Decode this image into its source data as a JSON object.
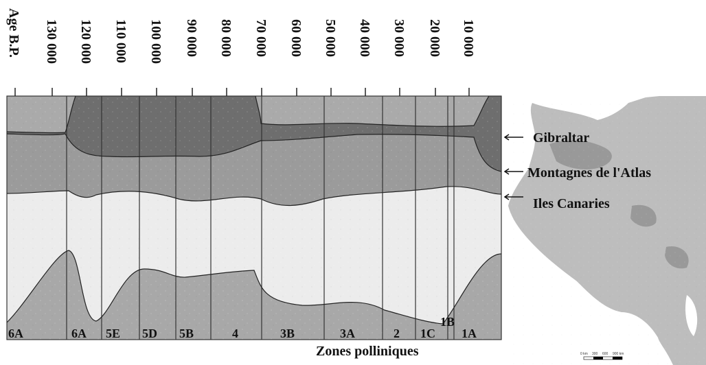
{
  "age_axis": {
    "title": "Age B.P.",
    "ticks": [
      "130 000",
      "120 000",
      "110 000",
      "100 000",
      "90 000",
      "80 000",
      "70 000",
      "60 000",
      "50 000",
      "40 000",
      "30 000",
      "20 000",
      "10 000"
    ]
  },
  "zones": {
    "title": "Zones polliniques",
    "labels": [
      "6A",
      "6A",
      "5E",
      "5D",
      "5B",
      "4",
      "3B",
      "3A",
      "2",
      "1C",
      "1B",
      "1A"
    ]
  },
  "legend_labels": {
    "gibraltar": "Gibraltar",
    "atlas": "Montagnes de l'Atlas",
    "canaries": "Iles Canaries"
  },
  "map_scale": {
    "ticks": [
      "0 km",
      "300",
      "600",
      "900 km"
    ]
  },
  "colors": {
    "top_band": "#aaaaaa",
    "gibraltar_band": "#6e6e6e",
    "atlas_band": "#9b9b9b",
    "canaries_band": "#ececec",
    "bottom_band": "#a8a8a8",
    "map_land": "#bdbdbd",
    "map_relief": "#8a8a8a"
  }
}
